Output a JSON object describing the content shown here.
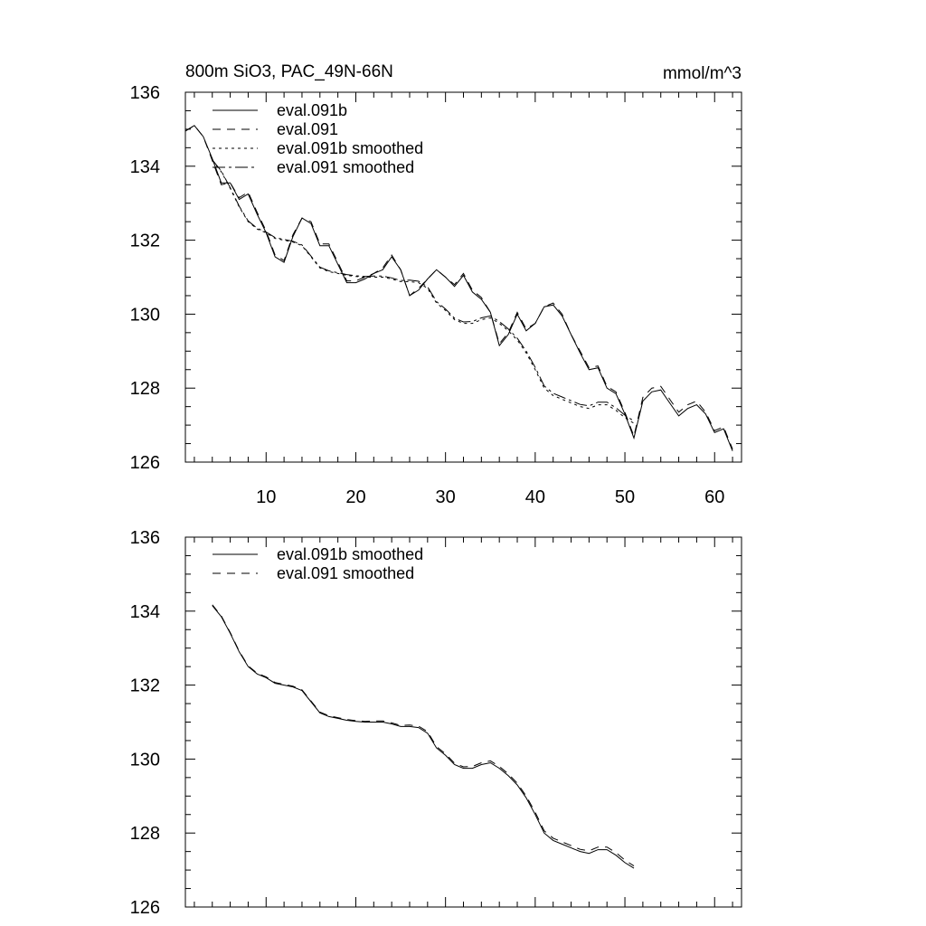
{
  "chart_data": [
    {
      "type": "line",
      "title": "800m SiO3, PAC_49N-66N",
      "units": "mmol/m^3",
      "xlabel": "",
      "ylabel": "",
      "xlim": [
        1,
        63
      ],
      "ylim": [
        126,
        136
      ],
      "x_tick_labels": [
        "10",
        "20",
        "30",
        "40",
        "50",
        "60"
      ],
      "y_tick_labels": [
        "126",
        "128",
        "130",
        "132",
        "134",
        "136"
      ],
      "legend": [
        "eval.091b",
        "eval.091",
        "eval.091b smoothed",
        "eval.091 smoothed"
      ],
      "series": [
        {
          "name": "eval.091b",
          "x_start": 1,
          "x_step": 1,
          "values": [
            134.95,
            135.1,
            134.8,
            134.2,
            133.55,
            133.55,
            133.1,
            133.25,
            132.7,
            132.2,
            131.55,
            131.4,
            132.1,
            132.6,
            132.45,
            131.85,
            131.85,
            131.35,
            130.85,
            130.85,
            130.95,
            131.1,
            131.2,
            131.55,
            131.2,
            130.5,
            130.65,
            130.95,
            131.2,
            131.0,
            130.75,
            131.05,
            130.6,
            130.4,
            130.05,
            129.15,
            129.45,
            130.0,
            129.55,
            129.75,
            130.2,
            130.25,
            129.95,
            129.45,
            128.95,
            128.5,
            128.55,
            128.0,
            127.85,
            127.3,
            126.65,
            127.65,
            127.9,
            127.95,
            127.6,
            127.25,
            127.45,
            127.55,
            127.3,
            126.8,
            126.9,
            126.3
          ]
        },
        {
          "name": "eval.091",
          "x_start": 1,
          "x_step": 1,
          "values": [
            134.95,
            135.1,
            134.8,
            134.15,
            133.5,
            133.55,
            133.15,
            133.3,
            132.75,
            132.25,
            131.6,
            131.45,
            132.15,
            132.6,
            132.5,
            131.9,
            131.9,
            131.4,
            130.9,
            130.9,
            131.0,
            131.1,
            131.25,
            131.6,
            131.2,
            130.5,
            130.7,
            130.95,
            131.2,
            131.0,
            130.8,
            131.1,
            130.65,
            130.45,
            130.05,
            129.2,
            129.5,
            130.05,
            129.6,
            129.75,
            130.2,
            130.3,
            130.0,
            129.45,
            129.0,
            128.55,
            128.6,
            128.05,
            127.9,
            127.35,
            126.7,
            127.75,
            128.0,
            128.05,
            127.7,
            127.35,
            127.55,
            127.65,
            127.35,
            126.85,
            126.95,
            126.35
          ]
        },
        {
          "name": "eval.091b smoothed",
          "x_start": 4,
          "x_step": 1,
          "values": [
            134.15,
            133.85,
            133.4,
            132.9,
            132.5,
            132.3,
            132.2,
            132.05,
            132.0,
            131.95,
            131.85,
            131.55,
            131.25,
            131.15,
            131.1,
            131.05,
            131.02,
            131.0,
            131.0,
            131.0,
            130.95,
            130.88,
            130.88,
            130.85,
            130.7,
            130.3,
            130.1,
            129.85,
            129.75,
            129.75,
            129.85,
            129.9,
            129.75,
            129.55,
            129.3,
            128.95,
            128.5,
            128.0,
            127.8,
            127.7,
            127.6,
            127.5,
            127.45,
            127.55,
            127.55,
            127.4,
            127.2,
            127.05
          ]
        },
        {
          "name": "eval.091 smoothed",
          "x_start": 4,
          "x_step": 1,
          "values": [
            134.17,
            133.87,
            133.42,
            132.92,
            132.52,
            132.32,
            132.22,
            132.07,
            132.02,
            131.97,
            131.87,
            131.57,
            131.27,
            131.17,
            131.12,
            131.07,
            131.04,
            131.02,
            131.03,
            131.03,
            130.98,
            130.91,
            130.92,
            130.89,
            130.74,
            130.34,
            130.14,
            129.89,
            129.79,
            129.8,
            129.9,
            129.95,
            129.8,
            129.6,
            129.35,
            129.0,
            128.56,
            128.06,
            127.86,
            127.76,
            127.66,
            127.56,
            127.52,
            127.62,
            127.62,
            127.47,
            127.27,
            127.11
          ]
        }
      ]
    },
    {
      "type": "line",
      "title": "",
      "xlabel": "",
      "ylabel": "",
      "xlim": [
        1,
        63
      ],
      "ylim": [
        126,
        136
      ],
      "x_tick_labels": [],
      "y_tick_labels": [
        "126",
        "128",
        "130",
        "132",
        "134",
        "136"
      ],
      "legend": [
        "eval.091b smoothed",
        "eval.091 smoothed"
      ],
      "series": [
        {
          "name": "eval.091b smoothed",
          "x_start": 4,
          "x_step": 1,
          "values": [
            134.15,
            133.85,
            133.4,
            132.9,
            132.5,
            132.3,
            132.2,
            132.05,
            132.0,
            131.95,
            131.85,
            131.55,
            131.25,
            131.15,
            131.1,
            131.05,
            131.02,
            131.0,
            131.0,
            131.0,
            130.95,
            130.88,
            130.88,
            130.85,
            130.7,
            130.3,
            130.1,
            129.85,
            129.75,
            129.75,
            129.85,
            129.9,
            129.75,
            129.55,
            129.3,
            128.95,
            128.5,
            128.0,
            127.8,
            127.7,
            127.6,
            127.5,
            127.45,
            127.55,
            127.55,
            127.4,
            127.2,
            127.05
          ]
        },
        {
          "name": "eval.091 smoothed",
          "x_start": 4,
          "x_step": 1,
          "values": [
            134.17,
            133.87,
            133.42,
            132.92,
            132.52,
            132.32,
            132.22,
            132.07,
            132.02,
            131.97,
            131.87,
            131.57,
            131.27,
            131.17,
            131.12,
            131.07,
            131.04,
            131.02,
            131.03,
            131.03,
            130.98,
            130.91,
            130.92,
            130.89,
            130.74,
            130.34,
            130.14,
            129.89,
            129.79,
            129.8,
            129.9,
            129.95,
            129.8,
            129.6,
            129.35,
            129.0,
            128.56,
            128.06,
            127.86,
            127.76,
            127.66,
            127.56,
            127.52,
            127.62,
            127.62,
            127.47,
            127.27,
            127.11
          ]
        }
      ]
    }
  ]
}
